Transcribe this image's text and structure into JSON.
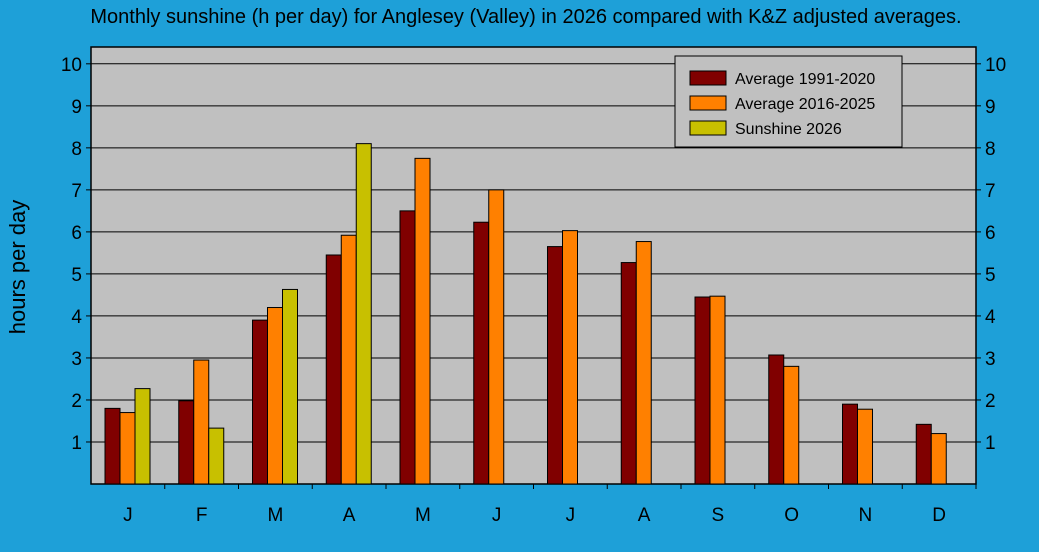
{
  "chart_data": {
    "type": "bar",
    "title": "Monthly sunshine (h per day) for Anglesey (Valley) in 2026 compared with K&Z adjusted averages.",
    "xlabel": "",
    "ylabel": "hours per day",
    "ylim": [
      0,
      10.4
    ],
    "yticks": [
      1,
      2,
      3,
      4,
      5,
      6,
      7,
      8,
      9,
      10
    ],
    "grid": true,
    "legend_position": "top-right",
    "categories": [
      "J",
      "F",
      "M",
      "A",
      "M",
      "J",
      "J",
      "A",
      "S",
      "O",
      "N",
      "D"
    ],
    "series": [
      {
        "name": "Average 1991-2020",
        "color": "#800000",
        "values": [
          1.8,
          1.98,
          3.9,
          5.45,
          6.5,
          6.23,
          5.65,
          5.27,
          4.45,
          3.07,
          1.9,
          1.42
        ]
      },
      {
        "name": "Average 2016-2025",
        "color": "#ff8000",
        "values": [
          1.7,
          2.95,
          4.2,
          5.92,
          7.75,
          7.0,
          6.03,
          5.77,
          4.47,
          2.8,
          1.78,
          1.2
        ]
      },
      {
        "name": "Sunshine 2026",
        "color": "#c8c000",
        "values": [
          2.27,
          1.33,
          4.63,
          8.1,
          null,
          null,
          null,
          null,
          null,
          null,
          null,
          null
        ]
      }
    ]
  }
}
